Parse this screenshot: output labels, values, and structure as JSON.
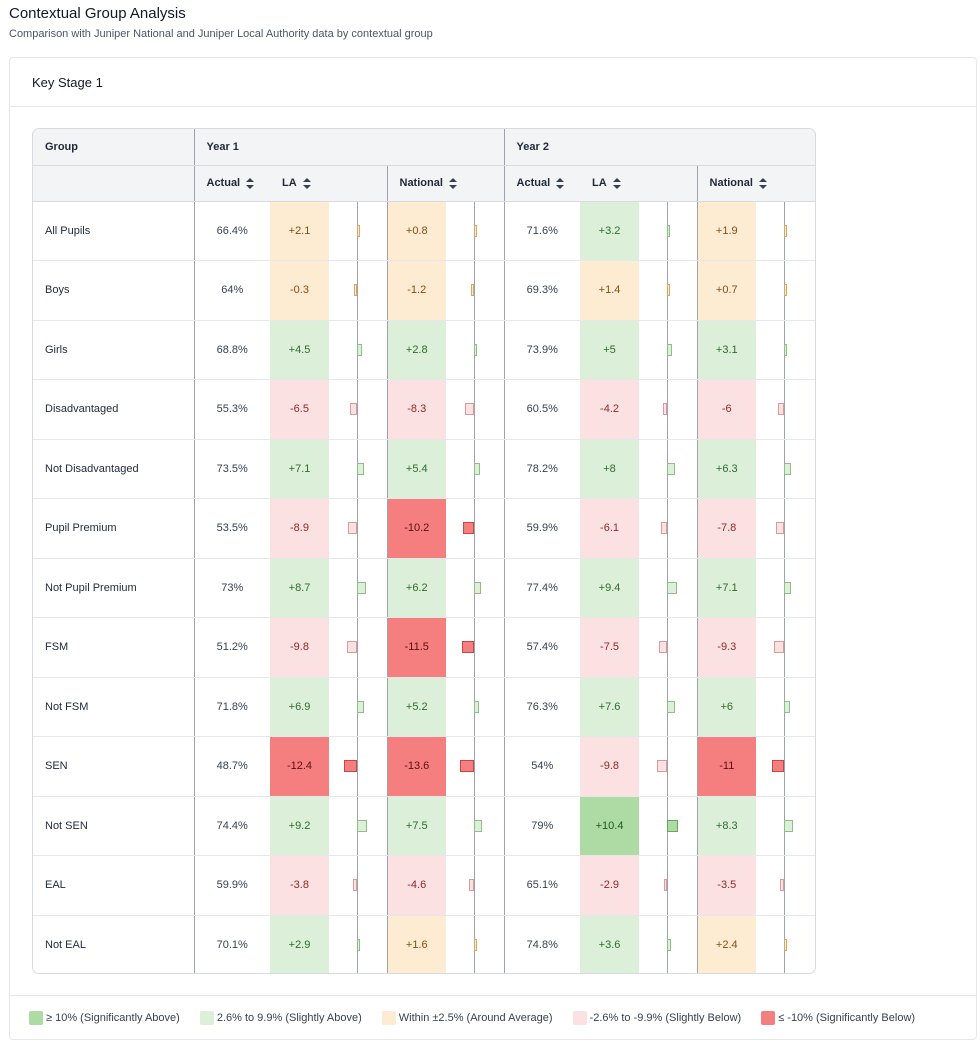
{
  "page": {
    "title": "Contextual Group Analysis",
    "subtitle": "Comparison with Juniper National and Juniper Local Authority data by contextual group"
  },
  "card": {
    "title": "Key Stage 1"
  },
  "table": {
    "group_header": "Group",
    "years": [
      "Year 1",
      "Year 2"
    ],
    "sub_headers": [
      "Actual",
      "LA",
      "National"
    ],
    "rows": [
      {
        "group": "All Pupils",
        "y1": {
          "actual": "66.4%",
          "la": "+2.1",
          "nat": "+0.8"
        },
        "y2": {
          "actual": "71.6%",
          "la": "+3.2",
          "nat": "+1.9"
        }
      },
      {
        "group": "Boys",
        "y1": {
          "actual": "64%",
          "la": "-0.3",
          "nat": "-1.2"
        },
        "y2": {
          "actual": "69.3%",
          "la": "+1.4",
          "nat": "+0.7"
        }
      },
      {
        "group": "Girls",
        "y1": {
          "actual": "68.8%",
          "la": "+4.5",
          "nat": "+2.8"
        },
        "y2": {
          "actual": "73.9%",
          "la": "+5",
          "nat": "+3.1"
        }
      },
      {
        "group": "Disadvantaged",
        "y1": {
          "actual": "55.3%",
          "la": "-6.5",
          "nat": "-8.3"
        },
        "y2": {
          "actual": "60.5%",
          "la": "-4.2",
          "nat": "-6"
        }
      },
      {
        "group": "Not Disadvantaged",
        "y1": {
          "actual": "73.5%",
          "la": "+7.1",
          "nat": "+5.4"
        },
        "y2": {
          "actual": "78.2%",
          "la": "+8",
          "nat": "+6.3"
        }
      },
      {
        "group": "Pupil Premium",
        "y1": {
          "actual": "53.5%",
          "la": "-8.9",
          "nat": "-10.2"
        },
        "y2": {
          "actual": "59.9%",
          "la": "-6.1",
          "nat": "-7.8"
        }
      },
      {
        "group": "Not Pupil Premium",
        "y1": {
          "actual": "73%",
          "la": "+8.7",
          "nat": "+6.2"
        },
        "y2": {
          "actual": "77.4%",
          "la": "+9.4",
          "nat": "+7.1"
        }
      },
      {
        "group": "FSM",
        "y1": {
          "actual": "51.2%",
          "la": "-9.8",
          "nat": "-11.5"
        },
        "y2": {
          "actual": "57.4%",
          "la": "-7.5",
          "nat": "-9.3"
        }
      },
      {
        "group": "Not FSM",
        "y1": {
          "actual": "71.8%",
          "la": "+6.9",
          "nat": "+5.2"
        },
        "y2": {
          "actual": "76.3%",
          "la": "+7.6",
          "nat": "+6"
        }
      },
      {
        "group": "SEN",
        "y1": {
          "actual": "48.7%",
          "la": "-12.4",
          "nat": "-13.6"
        },
        "y2": {
          "actual": "54%",
          "la": "-9.8",
          "nat": "-11"
        }
      },
      {
        "group": "Not SEN",
        "y1": {
          "actual": "74.4%",
          "la": "+9.2",
          "nat": "+7.5"
        },
        "y2": {
          "actual": "79%",
          "la": "+10.4",
          "nat": "+8.3"
        }
      },
      {
        "group": "EAL",
        "y1": {
          "actual": "59.9%",
          "la": "-3.8",
          "nat": "-4.6"
        },
        "y2": {
          "actual": "65.1%",
          "la": "-2.9",
          "nat": "-3.5"
        }
      },
      {
        "group": "Not EAL",
        "y1": {
          "actual": "70.1%",
          "la": "+2.9",
          "nat": "+1.6"
        },
        "y2": {
          "actual": "74.8%",
          "la": "+3.6",
          "nat": "+2.4"
        }
      }
    ]
  },
  "levels": {
    "sig_above": "#aedaa3",
    "slight_above": "#dcefd8",
    "average": "#fdecd1",
    "slight_below": "#fce1e2",
    "sig_below": "#f57f7f"
  },
  "legend": [
    {
      "level": "sig_above",
      "label": "≥ 10% (Significantly Above)",
      "color": "#aedaa3"
    },
    {
      "level": "slight_above",
      "label": "2.6% to 9.9% (Slightly Above)",
      "color": "#dcefd8"
    },
    {
      "level": "average",
      "label": "Within ±2.5% (Around Average)",
      "color": "#fdecd1"
    },
    {
      "level": "slight_below",
      "label": "-2.6% to -9.9% (Slightly Below)",
      "color": "#fce1e2"
    },
    {
      "level": "sig_below",
      "label": "≤ -10% (Significantly Below)",
      "color": "#f57f7f"
    }
  ]
}
